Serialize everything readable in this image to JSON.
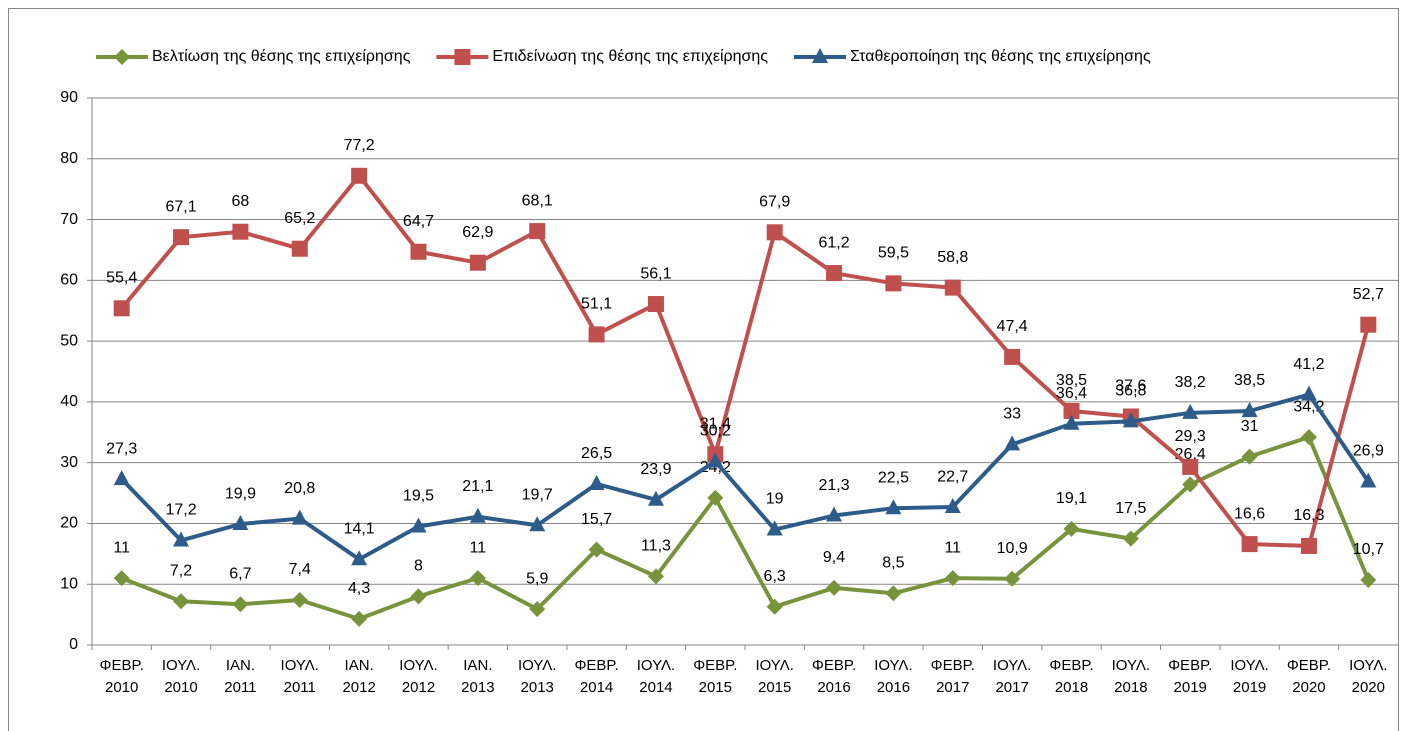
{
  "chart_data": {
    "type": "line",
    "categories": [
      "ΦΕΒΡ. 2010",
      "ΙΟΥΛ. 2010",
      "ΙΑΝ. 2011",
      "ΙΟΥΛ. 2011",
      "ΙΑΝ. 2012",
      "ΙΟΥΛ. 2012",
      "ΙΑΝ. 2013",
      "ΙΟΥΛ. 2013",
      "ΦΕΒΡ. 2014",
      "ΙΟΥΛ. 2014",
      "ΦΕΒΡ. 2015",
      "ΙΟΥΛ. 2015",
      "ΦΕΒΡ. 2016",
      "ΙΟΥΛ. 2016",
      "ΦΕΒΡ. 2017",
      "ΙΟΥΛ. 2017",
      "ΦΕΒΡ. 2018",
      "ΙΟΥΛ. 2018",
      "ΦΕΒΡ. 2019",
      "ΙΟΥΛ. 2019",
      "ΦΕΒΡ. 2020",
      "ΙΟΥΛ. 2020"
    ],
    "series": [
      {
        "name": "Βελτίωση της θέσης της επιχείρησης",
        "color": "#77933c",
        "marker": "diamond",
        "values": [
          11,
          7.2,
          6.7,
          7.4,
          4.3,
          8,
          11,
          5.9,
          15.7,
          11.3,
          24.2,
          6.3,
          9.4,
          8.5,
          11,
          10.9,
          19.1,
          17.5,
          26.4,
          31,
          34.2,
          10.7
        ],
        "value_labels": [
          "11",
          "7,2",
          "6,7",
          "7,4",
          "4,3",
          "8",
          "11",
          "5,9",
          "15,7",
          "11,3",
          "24,2",
          "6,3",
          "9,4",
          "8,5",
          "11",
          "10,9",
          "19,1",
          "17,5",
          "26,4",
          "31",
          "34,2",
          "10,7"
        ]
      },
      {
        "name": "Επιδείνωση της θέσης της επιχείρησης",
        "color": "#c0504d",
        "marker": "square",
        "values": [
          55.4,
          67.1,
          68,
          65.2,
          77.2,
          64.7,
          62.9,
          68.1,
          51.1,
          56.1,
          31.4,
          67.9,
          61.2,
          59.5,
          58.8,
          47.4,
          38.5,
          37.6,
          29.3,
          16.6,
          16.3,
          52.7
        ],
        "value_labels": [
          "55,4",
          "67,1",
          "68",
          "65,2",
          "77,2",
          "64,7",
          "62,9",
          "68,1",
          "51,1",
          "56,1",
          "31,4",
          "67,9",
          "61,2",
          "59,5",
          "58,8",
          "47,4",
          "38,5",
          "37,6",
          "29,3",
          "16,6",
          "16,3",
          "52,7"
        ]
      },
      {
        "name": "Σταθεροποίηση της θέσης της επιχείρησης",
        "color": "#2e5c8a",
        "marker": "triangle",
        "values": [
          27.3,
          17.2,
          19.9,
          20.8,
          14.1,
          19.5,
          21.1,
          19.7,
          26.5,
          23.9,
          30.2,
          19,
          21.3,
          22.5,
          22.7,
          33,
          36.4,
          36.8,
          38.2,
          38.5,
          41.2,
          26.9
        ],
        "value_labels": [
          "27,3",
          "17,2",
          "19,9",
          "20,8",
          "14,1",
          "19,5",
          "21,1",
          "19,7",
          "26,5",
          "23,9",
          "30,2",
          "19",
          "21,3",
          "22,5",
          "22,7",
          "33",
          "36,4",
          "36,8",
          "38,2",
          "38,5",
          "41,2",
          "26,9"
        ]
      }
    ],
    "ylim": [
      0,
      90
    ],
    "yticks": [
      0,
      10,
      20,
      30,
      40,
      50,
      60,
      70,
      80,
      90
    ],
    "grid": true,
    "legend": "top"
  }
}
